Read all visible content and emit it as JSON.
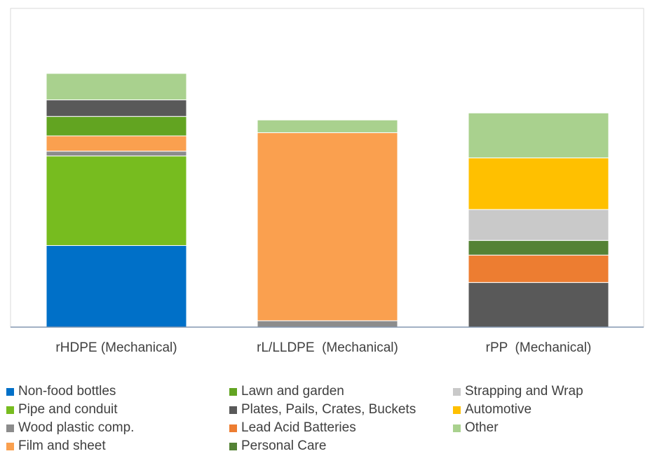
{
  "chart_data": {
    "type": "bar",
    "stacked": true,
    "title": "",
    "xlabel": "",
    "ylabel": "",
    "ylim": [
      0,
      100
    ],
    "grid": false,
    "legend_position": "bottom",
    "categories": [
      "rHDPE (Mechanical)",
      "rL/LLDPE  (Mechanical)",
      "rPP  (Mechanical)"
    ],
    "series": [
      {
        "name": "Non-food bottles",
        "color": "#0070C8",
        "values": [
          25.6,
          0,
          0
        ]
      },
      {
        "name": "Pipe and conduit",
        "color": "#77BC1F",
        "values": [
          28.1,
          0,
          0
        ]
      },
      {
        "name": "Wood plastic comp.",
        "color": "#8C8C8C",
        "values": [
          1.5,
          2.0,
          0
        ]
      },
      {
        "name": "Film and sheet",
        "color": "#FAA04F",
        "values": [
          4.8,
          59.0,
          0
        ]
      },
      {
        "name": "Lawn and garden",
        "color": "#62A421",
        "values": [
          6.1,
          0,
          0
        ]
      },
      {
        "name": "Plates, Pails, Crates, Buckets",
        "color": "#595959",
        "values": [
          5.2,
          0,
          14.0
        ]
      },
      {
        "name": "Lead Acid Batteries",
        "color": "#ED7D31",
        "values": [
          0,
          0,
          8.6
        ]
      },
      {
        "name": "Personal Care",
        "color": "#548235",
        "values": [
          0,
          0,
          4.6
        ]
      },
      {
        "name": "Strapping and Wrap",
        "color": "#C9C9C9",
        "values": [
          0,
          0,
          9.7
        ]
      },
      {
        "name": "Automotive",
        "color": "#FFC000",
        "values": [
          0,
          0,
          16.2
        ]
      },
      {
        "name": "Other",
        "color": "#A9D18E",
        "values": [
          8.3,
          4.0,
          14.1
        ]
      }
    ]
  }
}
